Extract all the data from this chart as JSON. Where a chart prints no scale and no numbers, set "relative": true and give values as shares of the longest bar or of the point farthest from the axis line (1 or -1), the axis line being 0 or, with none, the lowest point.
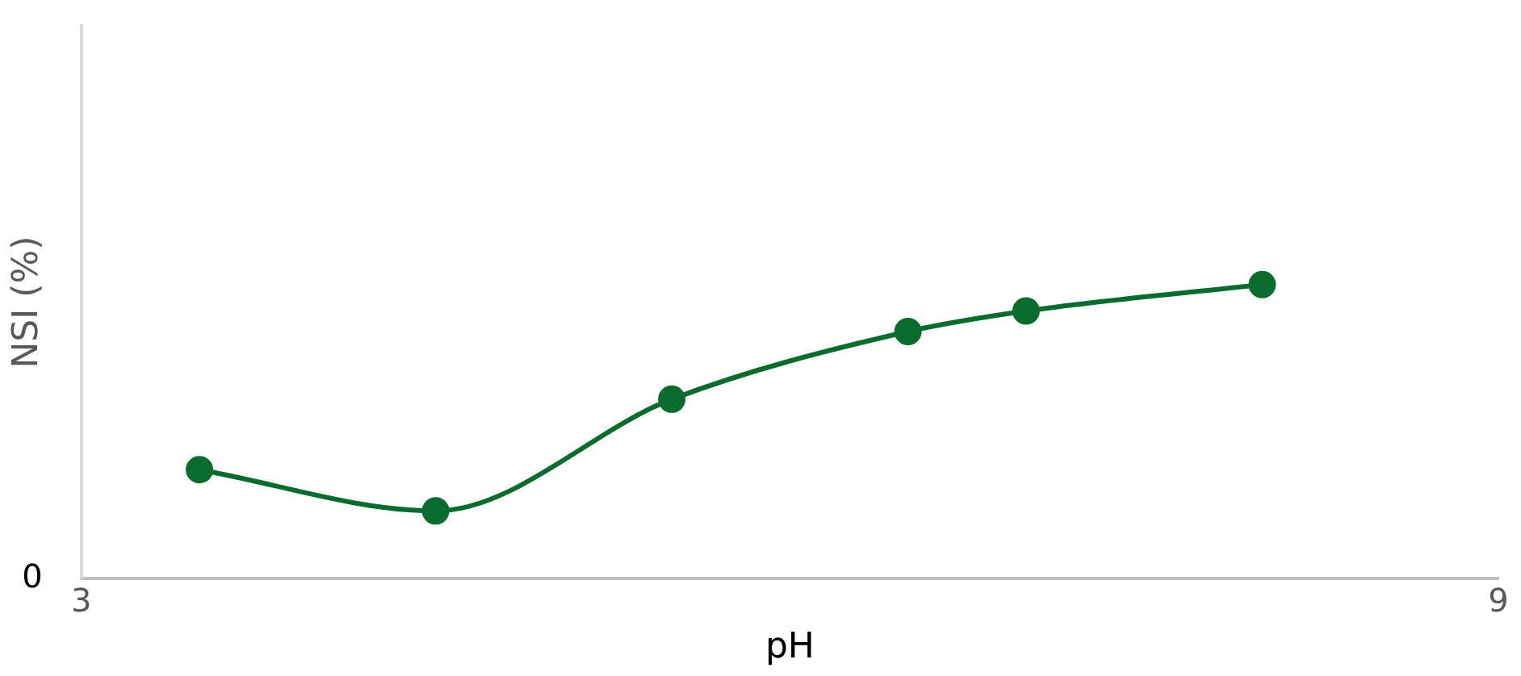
{
  "chart_data": {
    "type": "line",
    "relative": true,
    "xlabel": "pH",
    "ylabel": "NSI (%)",
    "x": [
      3.5,
      4.5,
      5.5,
      6.5,
      7,
      8
    ],
    "series": [
      {
        "color": "#0a6b2e",
        "values": [
          0.37,
          0.23,
          0.61,
          0.84,
          0.91,
          1
        ]
      }
    ],
    "xlim": [
      3,
      9
    ],
    "xticks": [
      3,
      9
    ],
    "annotations": [
      "0"
    ],
    "grid": false,
    "legend": false,
    "marker": "circle",
    "line_style": "solid"
  }
}
